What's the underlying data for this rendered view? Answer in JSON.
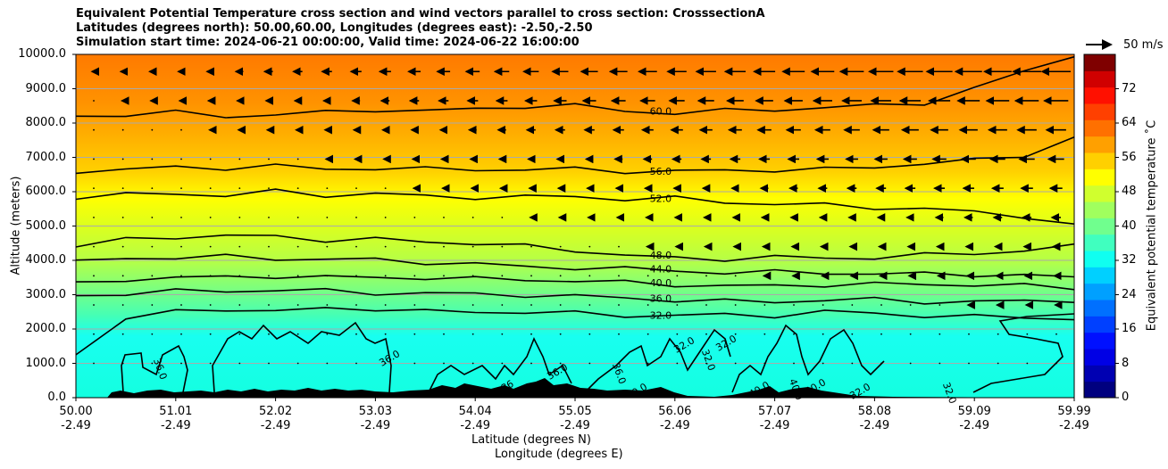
{
  "chart_data": {
    "type": "heatmap",
    "title_lines": [
      "Equivalent Potential Temperature cross section and wind vectors parallel to cross section: CrosssectionA",
      "Latitudes (degrees north): 50.00,60.00, Longitudes (degrees east): -2.50,-2.50",
      "Simulation start time: 2024-06-21 00:00:00, Valid time: 2024-06-22 16:00:00"
    ],
    "ylabel": "Altitude (meters)",
    "xlabel_lat": "Latitude (degrees N)",
    "xlabel_lon": "Longitude (degrees E)",
    "ylim": [
      0,
      10000
    ],
    "y_ticks": [
      "0.0",
      "1000.0",
      "2000.0",
      "3000.0",
      "4000.0",
      "5000.0",
      "6000.0",
      "7000.0",
      "8000.0",
      "9000.0",
      "10000.0"
    ],
    "x_ticks_lat": [
      "50.00",
      "51.01",
      "52.02",
      "53.03",
      "54.04",
      "55.05",
      "56.06",
      "57.07",
      "58.08",
      "59.09",
      "59.99"
    ],
    "x_ticks_lon": [
      "-2.49",
      "-2.49",
      "-2.49",
      "-2.49",
      "-2.49",
      "-2.49",
      "-2.49",
      "-2.49",
      "-2.49",
      "-2.49",
      "-2.49"
    ],
    "colorbar_label": "Equivalent potential temperature ˚C",
    "colorbar_ticks": [
      "0",
      "8",
      "16",
      "24",
      "32",
      "40",
      "48",
      "56",
      "64",
      "72"
    ],
    "colorbar_range": [
      0,
      80
    ],
    "wind_key_label": "50 m/s",
    "contours": [
      {
        "label": "60.0",
        "altitudes": [
          8200,
          8250,
          8300,
          8200,
          8250,
          8300,
          8400,
          8350,
          8400,
          8500,
          8500,
          8350,
          8300,
          8350,
          8400,
          8450,
          8500,
          8600,
          9000,
          9500,
          10000
        ]
      },
      {
        "label": "56.0",
        "altitudes": [
          6600,
          6650,
          6700,
          6700,
          6750,
          6650,
          6700,
          6650,
          6650,
          6650,
          6650,
          6600,
          6600,
          6600,
          6650,
          6650,
          6700,
          6850,
          6900,
          7050,
          7600
        ]
      },
      {
        "label": "52.0",
        "altitudes": [
          5850,
          5900,
          5950,
          5900,
          6000,
          5900,
          5950,
          5850,
          5850,
          5850,
          5850,
          5800,
          5800,
          5700,
          5650,
          5600,
          5550,
          5500,
          5400,
          5300,
          5000
        ]
      },
      {
        "label": "48.0",
        "altitudes": [
          4400,
          4600,
          4700,
          4700,
          4700,
          4600,
          4600,
          4550,
          4500,
          4400,
          4300,
          4150,
          4050,
          4050,
          4100,
          4050,
          4100,
          4150,
          4200,
          4300,
          4400
        ]
      },
      {
        "label": "44.0",
        "altitudes": [
          3950,
          4050,
          4100,
          4100,
          4050,
          4050,
          4000,
          3950,
          3900,
          3800,
          3800,
          3750,
          3700,
          3650,
          3650,
          3650,
          3600,
          3600,
          3600,
          3550,
          3500
        ]
      },
      {
        "label": "40.0",
        "altitudes": [
          3300,
          3450,
          3500,
          3500,
          3550,
          3500,
          3500,
          3500,
          3450,
          3450,
          3400,
          3350,
          3300,
          3250,
          3250,
          3300,
          3300,
          3300,
          3300,
          3250,
          3200
        ]
      },
      {
        "label": "36.0",
        "altitudes": [
          2950,
          3050,
          3100,
          3100,
          3150,
          3100,
          3050,
          3050,
          3000,
          3000,
          2950,
          2900,
          2850,
          2800,
          2800,
          2850,
          2850,
          2800,
          2800,
          2800,
          2850
        ]
      },
      {
        "label": "32.0",
        "altitudes": [
          1300,
          2300,
          2500,
          2600,
          2500,
          2600,
          2600,
          2500,
          2500,
          2500,
          2450,
          2400,
          2400,
          2400,
          2400,
          2500,
          2450,
          2400,
          2350,
          2350,
          2300
        ]
      }
    ],
    "inline_labels": [
      "36.0",
      "36.0",
      "36.0",
      "36.0",
      "40.0",
      "32.0",
      "32.0",
      "32.0",
      "40.0",
      "40.0",
      "40.0",
      "32.0",
      "32.0",
      "36"
    ]
  }
}
